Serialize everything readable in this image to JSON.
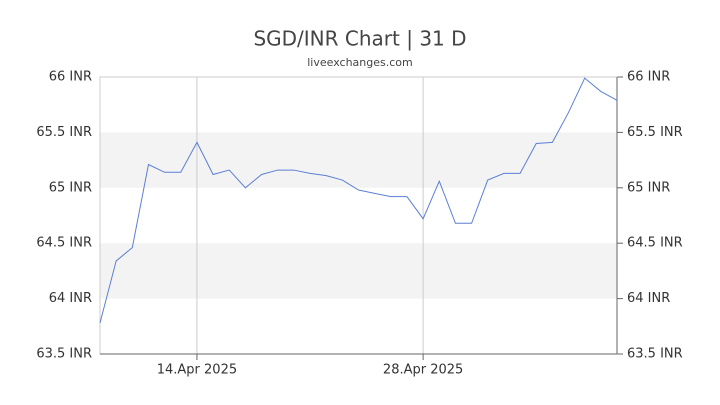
{
  "chart_data": {
    "type": "line",
    "title": "SGD/INR Chart | 31 D",
    "subtitle": "liveexchanges.com",
    "x": [
      "2025-04-08",
      "2025-04-09",
      "2025-04-10",
      "2025-04-11",
      "2025-04-12",
      "2025-04-13",
      "2025-04-14",
      "2025-04-15",
      "2025-04-16",
      "2025-04-17",
      "2025-04-18",
      "2025-04-19",
      "2025-04-20",
      "2025-04-21",
      "2025-04-22",
      "2025-04-23",
      "2025-04-24",
      "2025-04-25",
      "2025-04-26",
      "2025-04-27",
      "2025-04-28",
      "2025-04-29",
      "2025-04-30",
      "2025-05-01",
      "2025-05-02",
      "2025-05-03",
      "2025-05-04",
      "2025-05-05",
      "2025-05-06",
      "2025-05-07",
      "2025-05-08",
      "2025-05-09",
      "2025-05-10"
    ],
    "series": [
      {
        "name": "SGD/INR",
        "color": "#5b7fd6",
        "values": [
          63.78,
          64.34,
          64.46,
          65.21,
          65.14,
          65.14,
          65.41,
          65.12,
          65.16,
          65.0,
          65.12,
          65.16,
          65.16,
          65.13,
          65.11,
          65.07,
          64.98,
          64.95,
          64.92,
          64.92,
          64.72,
          65.06,
          64.68,
          64.68,
          65.07,
          65.13,
          65.13,
          65.4,
          65.41,
          65.68,
          65.99,
          65.87,
          65.79
        ]
      }
    ],
    "xlim": [
      "2025-04-08",
      "2025-05-10"
    ],
    "xticks": [
      {
        "value": "2025-04-14",
        "label": "14.Apr 2025"
      },
      {
        "value": "2025-04-28",
        "label": "28.Apr 2025"
      }
    ],
    "ylim": [
      63.5,
      66
    ],
    "yticks": [
      {
        "value": 63.5,
        "label": "63.5 INR"
      },
      {
        "value": 64,
        "label": "64 INR"
      },
      {
        "value": 64.5,
        "label": "64.5 INR"
      },
      {
        "value": 65,
        "label": "65 INR"
      },
      {
        "value": 65.5,
        "label": "65.5 INR"
      },
      {
        "value": 66,
        "label": "66 INR"
      }
    ],
    "grid": true
  }
}
